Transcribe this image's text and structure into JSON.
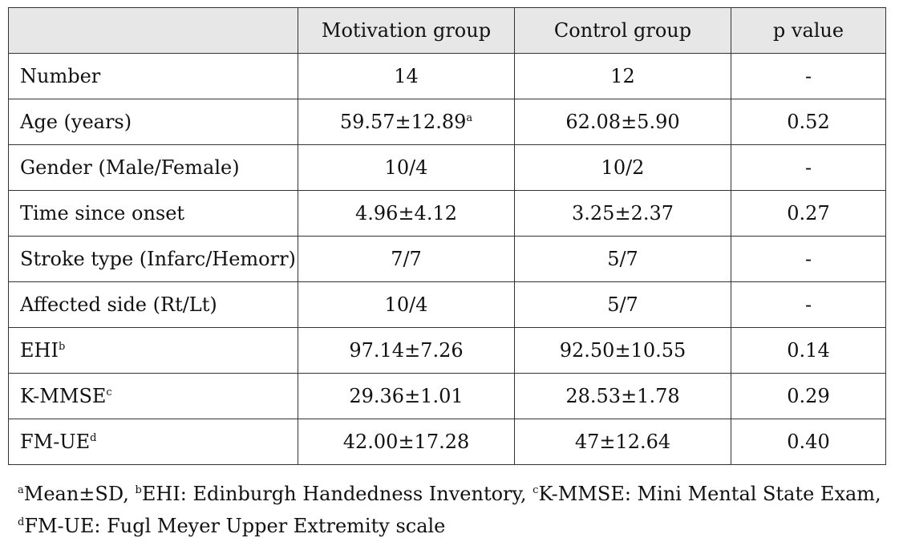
{
  "table": {
    "headers": [
      "",
      "Motivation group",
      "Control group",
      "p  value"
    ],
    "rows": [
      {
        "label": "Number",
        "label_sup": "",
        "motivation": "14",
        "motivation_sup": "",
        "control": "12",
        "p": "-"
      },
      {
        "label": "Age (years)",
        "label_sup": "",
        "motivation": "59.57±12.89",
        "motivation_sup": "a",
        "control": "62.08±5.90",
        "p": "0.52"
      },
      {
        "label": "Gender (Male/Female)",
        "label_sup": "",
        "motivation": "10/4",
        "motivation_sup": "",
        "control": "10/2",
        "p": "-"
      },
      {
        "label": "Time since onset",
        "label_sup": "",
        "motivation": "4.96±4.12",
        "motivation_sup": "",
        "control": "3.25±2.37",
        "p": "0.27"
      },
      {
        "label": "Stroke type (Infarc/Hemorr)",
        "label_sup": "",
        "motivation": "7/7",
        "motivation_sup": "",
        "control": "5/7",
        "p": "-"
      },
      {
        "label": "Affected side (Rt/Lt)",
        "label_sup": "",
        "motivation": "10/4",
        "motivation_sup": "",
        "control": "5/7",
        "p": "-"
      },
      {
        "label": "EHI",
        "label_sup": "b",
        "motivation": "97.14±7.26",
        "motivation_sup": "",
        "control": "92.50±10.55",
        "p": "0.14"
      },
      {
        "label": "K-MMSE",
        "label_sup": "c",
        "motivation": "29.36±1.01",
        "motivation_sup": "",
        "control": "28.53±1.78",
        "p": "0.29"
      },
      {
        "label": "FM-UE",
        "label_sup": "d",
        "motivation": "42.00±17.28",
        "motivation_sup": "",
        "control": "47±12.64",
        "p": "0.40"
      }
    ]
  },
  "footnotes": {
    "line1": [
      {
        "sup": "a",
        "text": "Mean±SD, "
      },
      {
        "sup": "b",
        "text": "EHI: Edinburgh Handedness Inventory, "
      },
      {
        "sup": "c",
        "text": "K-MMSE: Mini Mental State Exam,"
      }
    ],
    "line2": [
      {
        "sup": "d",
        "text": "FM-UE: Fugl Meyer Upper Extremity scale"
      }
    ]
  }
}
